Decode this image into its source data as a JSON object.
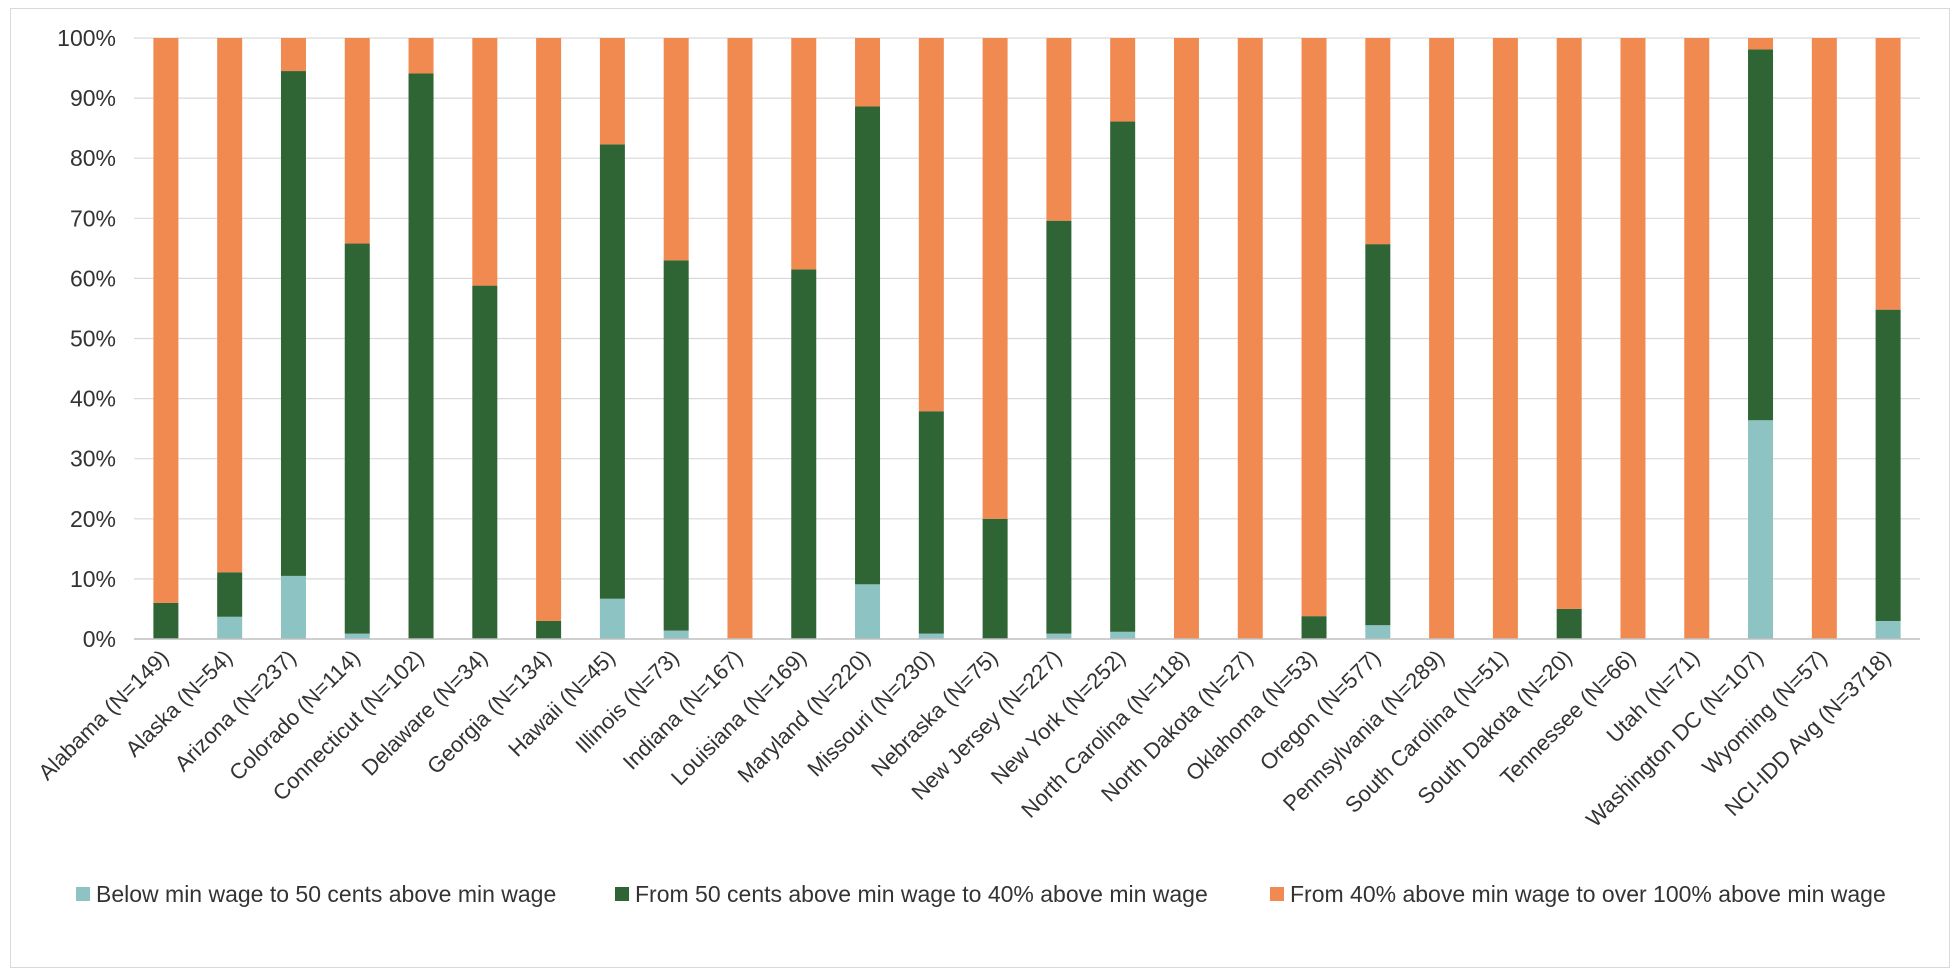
{
  "chart_data": {
    "type": "bar",
    "stacked": true,
    "percent": true,
    "categories": [
      "Alabama (N=149)",
      "Alaska (N=54)",
      "Arizona (N=237)",
      "Colorado (N=114)",
      "Connecticut (N=102)",
      "Delaware (N=34)",
      "Georgia (N=134)",
      "Hawaii (N=45)",
      "Illinois (N=73)",
      "Indiana (N=167)",
      "Louisiana (N=169)",
      "Maryland (N=220)",
      "Missouri (N=230)",
      "Nebraska (N=75)",
      "New Jersey (N=227)",
      "New York (N=252)",
      "North Carolina (N=118)",
      "North Dakota (N=27)",
      "Oklahoma (N=53)",
      "Oregon (N=577)",
      "Pennsylvania (N=289)",
      "South Carolina (N=51)",
      "South Dakota (N=20)",
      "Tennessee (N=66)",
      "Utah (N=71)",
      "Washington DC (N=107)",
      "Wyoming (N=57)",
      "NCI-IDD Avg (N=3718)"
    ],
    "series": [
      {
        "name": "Below min wage to 50 cents above min wage",
        "color": "#8dc3c3",
        "values": [
          0,
          3.7,
          10.5,
          0.9,
          0,
          0,
          0,
          6.7,
          1.4,
          0,
          0,
          9.1,
          0.9,
          0,
          0.9,
          1.2,
          0,
          0,
          0,
          2.3,
          0,
          0,
          0,
          0,
          0,
          36.4,
          0,
          3.0
        ]
      },
      {
        "name": "From 50 cents above min wage to 40% above min wage",
        "color": "#2f6434",
        "values": [
          6.0,
          7.4,
          84.0,
          64.9,
          94.1,
          58.8,
          3.0,
          75.6,
          61.6,
          0,
          61.5,
          79.5,
          37.0,
          20.0,
          68.7,
          84.9,
          0,
          0,
          3.8,
          63.4,
          0,
          0,
          5.0,
          0,
          0,
          61.7,
          0,
          51.8
        ]
      },
      {
        "name": "From 40% above min wage to over 100% above min wage",
        "color": "#f08a51",
        "values": [
          94.0,
          88.9,
          5.5,
          34.2,
          5.9,
          41.2,
          97.0,
          17.7,
          37.0,
          100,
          38.5,
          11.4,
          62.1,
          80.0,
          30.4,
          13.9,
          100,
          100,
          96.2,
          34.3,
          100,
          100,
          95.0,
          100,
          100,
          1.9,
          100,
          45.2
        ]
      }
    ],
    "y_ticks": [
      "0%",
      "10%",
      "20%",
      "30%",
      "40%",
      "50%",
      "60%",
      "70%",
      "80%",
      "90%",
      "100%"
    ],
    "ylim": [
      0,
      100
    ],
    "grid": true,
    "legend_position": "bottom",
    "title": "",
    "xlabel": "",
    "ylabel": ""
  }
}
